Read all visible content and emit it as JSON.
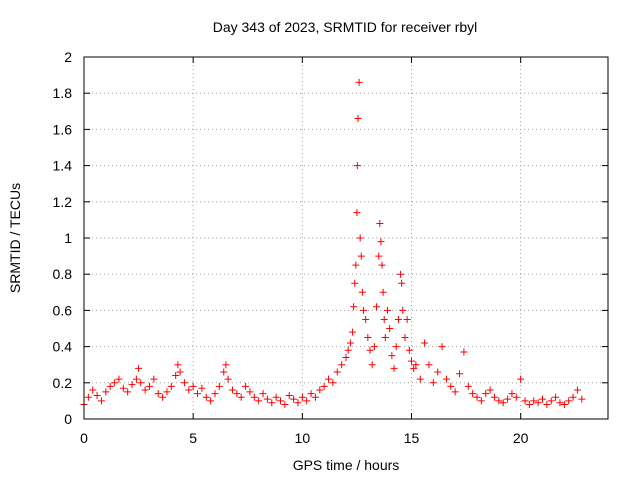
{
  "chart_data": {
    "type": "scatter",
    "title": "Day 343 of 2023, SRMTID for receiver rbyl",
    "xlabel": "GPS time / hours",
    "ylabel": "SRMTID / TECUs",
    "xlim": [
      0,
      24
    ],
    "ylim": [
      0,
      2
    ],
    "xticks": [
      0,
      5,
      10,
      15,
      20
    ],
    "xtick_labels": [
      "0",
      "5",
      "10",
      "15",
      "20"
    ],
    "yticks": [
      0,
      0.2,
      0.4,
      0.6,
      0.8,
      1,
      1.2,
      1.4,
      1.6,
      1.8,
      2
    ],
    "ytick_labels": [
      "0",
      "0.2",
      "0.4",
      "0.6",
      "0.8",
      "1",
      "1.2",
      "1.4",
      "1.6",
      "1.8",
      "2"
    ],
    "grid": true,
    "marker": "plus",
    "color": "#ff0000",
    "series": [
      {
        "name": "SRMTID",
        "x": [
          0.0,
          0.2,
          0.4,
          0.6,
          0.8,
          1.0,
          1.2,
          1.4,
          1.6,
          1.8,
          2.0,
          2.2,
          2.4,
          2.5,
          2.6,
          2.8,
          3.0,
          3.2,
          3.4,
          3.6,
          3.8,
          4.0,
          4.2,
          4.3,
          4.4,
          4.6,
          4.8,
          5.0,
          5.2,
          5.4,
          5.6,
          5.8,
          6.0,
          6.2,
          6.4,
          6.5,
          6.6,
          6.8,
          7.0,
          7.2,
          7.4,
          7.6,
          7.8,
          8.0,
          8.2,
          8.4,
          8.6,
          8.8,
          9.0,
          9.2,
          9.4,
          9.6,
          9.8,
          10.0,
          10.2,
          10.4,
          10.6,
          10.8,
          11.0,
          11.2,
          11.4,
          11.6,
          11.8,
          12.0,
          12.1,
          12.2,
          12.3,
          12.35,
          12.4,
          12.45,
          12.5,
          12.52,
          12.55,
          12.6,
          12.65,
          12.7,
          12.75,
          12.8,
          12.9,
          13.0,
          13.1,
          13.2,
          13.3,
          13.4,
          13.5,
          13.55,
          13.6,
          13.65,
          13.7,
          13.75,
          13.8,
          13.9,
          14.0,
          14.1,
          14.2,
          14.3,
          14.4,
          14.5,
          14.55,
          14.6,
          14.7,
          14.8,
          14.9,
          15.0,
          15.1,
          15.2,
          15.4,
          15.6,
          15.8,
          16.0,
          16.2,
          16.4,
          16.6,
          16.8,
          17.0,
          17.2,
          17.4,
          17.6,
          17.8,
          18.0,
          18.2,
          18.4,
          18.6,
          18.8,
          19.0,
          19.2,
          19.4,
          19.6,
          19.8,
          20.0,
          20.2,
          20.4,
          20.6,
          20.8,
          21.0,
          21.2,
          21.4,
          21.6,
          21.8,
          22.0,
          22.2,
          22.4,
          22.6,
          22.8
        ],
        "y": [
          0.08,
          0.12,
          0.16,
          0.13,
          0.1,
          0.15,
          0.18,
          0.2,
          0.22,
          0.17,
          0.15,
          0.19,
          0.22,
          0.28,
          0.2,
          0.16,
          0.18,
          0.22,
          0.14,
          0.12,
          0.15,
          0.18,
          0.24,
          0.3,
          0.26,
          0.2,
          0.16,
          0.18,
          0.14,
          0.17,
          0.12,
          0.1,
          0.14,
          0.18,
          0.26,
          0.3,
          0.22,
          0.16,
          0.14,
          0.12,
          0.18,
          0.15,
          0.12,
          0.1,
          0.14,
          0.11,
          0.09,
          0.12,
          0.1,
          0.08,
          0.13,
          0.11,
          0.09,
          0.12,
          0.1,
          0.14,
          0.12,
          0.16,
          0.18,
          0.22,
          0.2,
          0.26,
          0.3,
          0.34,
          0.38,
          0.42,
          0.48,
          0.62,
          0.75,
          0.85,
          1.14,
          1.4,
          1.66,
          1.86,
          1.0,
          0.9,
          0.7,
          0.6,
          0.55,
          0.45,
          0.38,
          0.3,
          0.4,
          0.62,
          0.9,
          1.08,
          0.98,
          0.85,
          0.7,
          0.55,
          0.45,
          0.6,
          0.5,
          0.35,
          0.28,
          0.4,
          0.55,
          0.8,
          0.75,
          0.6,
          0.45,
          0.55,
          0.38,
          0.32,
          0.28,
          0.3,
          0.22,
          0.42,
          0.3,
          0.2,
          0.26,
          0.4,
          0.22,
          0.18,
          0.15,
          0.25,
          0.37,
          0.18,
          0.14,
          0.12,
          0.1,
          0.14,
          0.16,
          0.12,
          0.1,
          0.09,
          0.11,
          0.14,
          0.12,
          0.22,
          0.1,
          0.08,
          0.1,
          0.09,
          0.11,
          0.08,
          0.1,
          0.12,
          0.09,
          0.08,
          0.1,
          0.12,
          0.16,
          0.11
        ]
      }
    ]
  }
}
